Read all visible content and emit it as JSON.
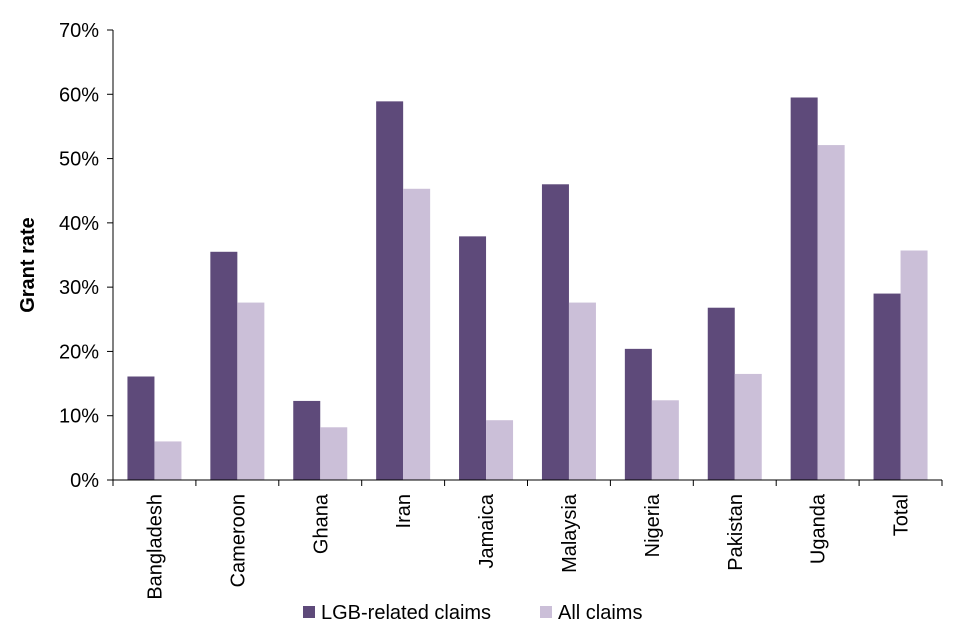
{
  "chart_data": {
    "type": "bar",
    "title": "",
    "xlabel": "",
    "ylabel": "Grant rate",
    "ylim": [
      0,
      70
    ],
    "yticks": [
      "0%",
      "10%",
      "20%",
      "30%",
      "40%",
      "50%",
      "60%",
      "70%"
    ],
    "categories": [
      "Bangladesh",
      "Cameroon",
      "Ghana",
      "Iran",
      "Jamaica",
      "Malaysia",
      "Nigeria",
      "Pakistan",
      "Uganda",
      "Total"
    ],
    "series": [
      {
        "name": "LGB-related claims",
        "color": "#5e4a7a",
        "values": [
          16.1,
          35.5,
          12.3,
          58.9,
          37.9,
          46.0,
          20.4,
          26.8,
          59.5,
          29.0
        ]
      },
      {
        "name": "All claims",
        "color": "#cbbfd8",
        "values": [
          6.0,
          27.6,
          8.2,
          45.3,
          9.3,
          27.6,
          12.4,
          16.5,
          52.1,
          35.7
        ]
      }
    ],
    "grid": false,
    "legend_position": "bottom"
  }
}
